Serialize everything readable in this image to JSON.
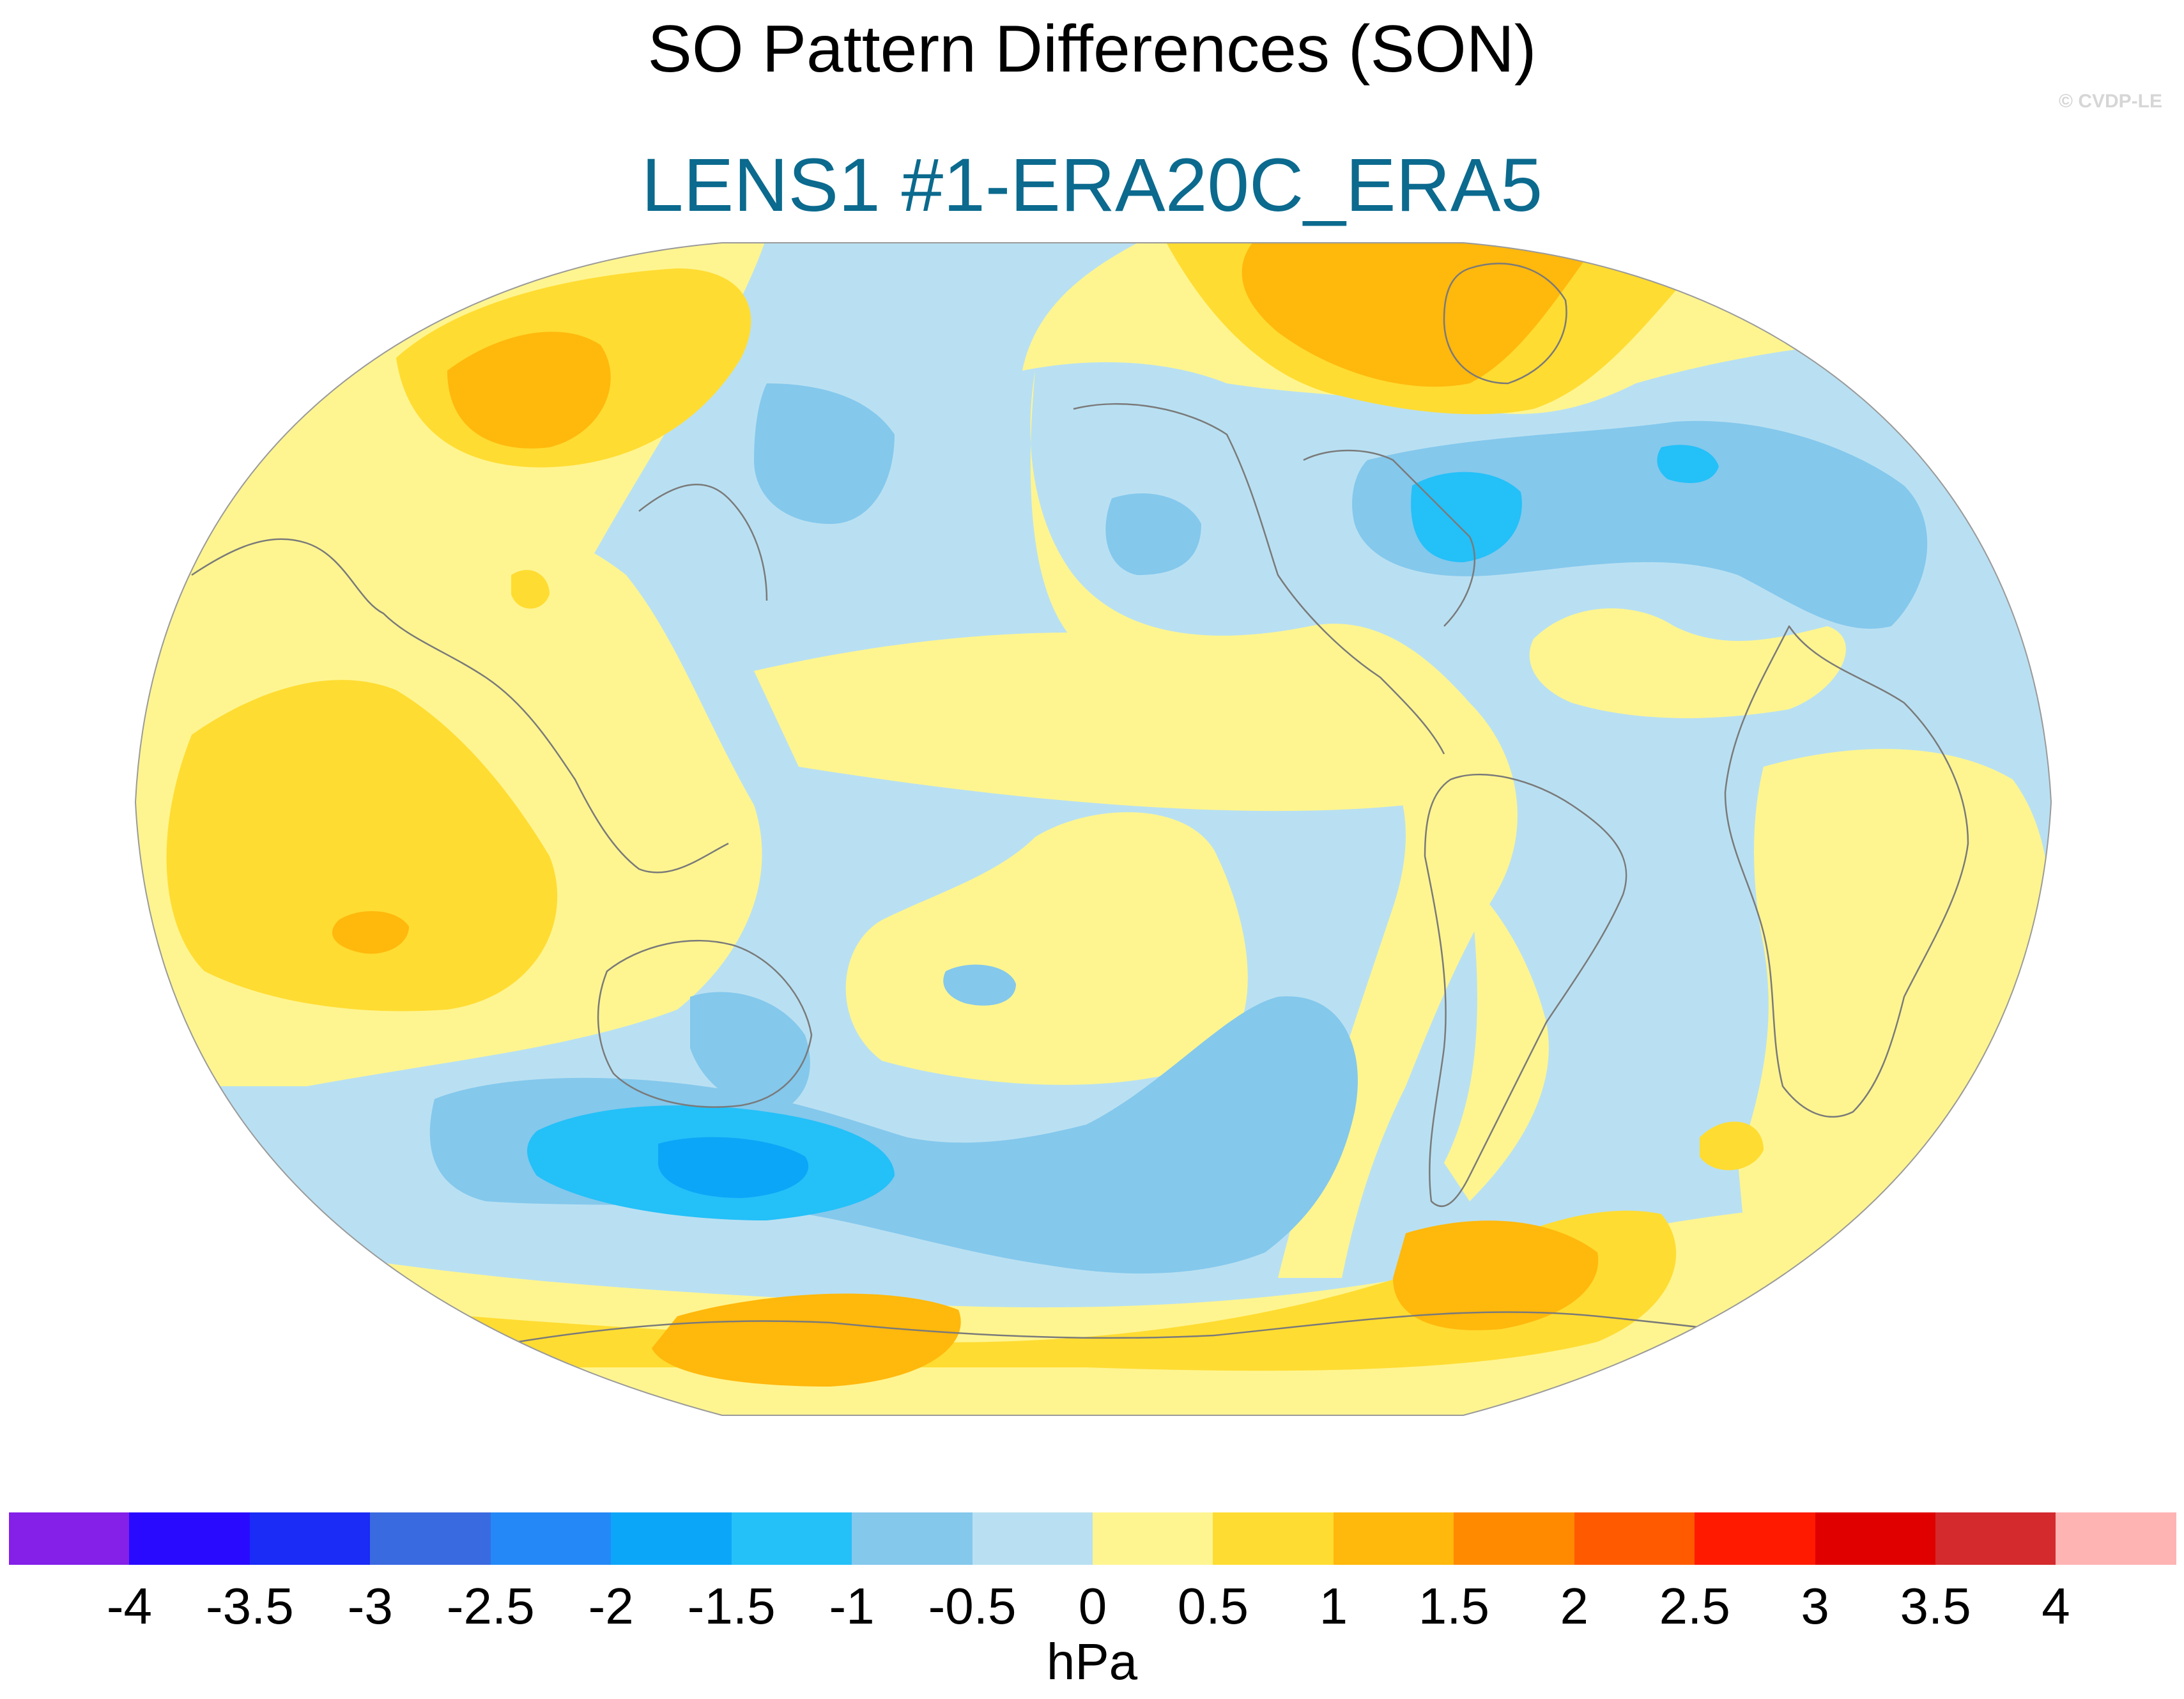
{
  "title": "SO Pattern Differences (SON)",
  "subtitle": "LENS1 #1-ERA20C_ERA5",
  "credit": "© CVDP-LE",
  "colors": {
    "subtitle": "#0b6a8e",
    "ocean_background": "#b9e0f2",
    "coastline": "#7a7a7a",
    "map_outline": "#9a9a9a"
  },
  "projection": "Robinson",
  "colorbar": {
    "unit": "hPa",
    "ticks": [
      "-4",
      "-3.5",
      "-3",
      "-2.5",
      "-2",
      "-1.5",
      "-1",
      "-0.5",
      "0",
      "0.5",
      "1",
      "1.5",
      "2",
      "2.5",
      "3",
      "3.5",
      "4"
    ],
    "colors": [
      "#8420e8",
      "#2a0aff",
      "#1a2cf5",
      "#3a6ae0",
      "#2489f6",
      "#0ca6f8",
      "#24c0f8",
      "#84c8ec",
      "#b9e0f2",
      "#fff590",
      "#ffdc32",
      "#ffb80c",
      "#ff8a00",
      "#ff5a00",
      "#ff1a00",
      "#e00000",
      "#d42a2e",
      "#ffb4b4"
    ]
  },
  "map_regions": [
    {
      "name": "pacific-basin-negative",
      "level": "-0.5 to 0",
      "color": "#b9e0f2"
    },
    {
      "name": "equatorial-positive-band",
      "level": "0 to 0.5",
      "color": "#fff590"
    },
    {
      "name": "indian-ocean-positive",
      "level": "0.5 to 1",
      "color": "#ffdc32"
    },
    {
      "name": "indian-ocean-core",
      "level": "1 to 1.5",
      "color": "#ffb80c"
    },
    {
      "name": "siberia-positive",
      "level": "1 to 1.5",
      "color": "#ffb80c"
    },
    {
      "name": "greenland-positive",
      "level": "1 to 1.5",
      "color": "#ffb80c"
    },
    {
      "name": "antarctic-positive",
      "level": "1 to 1.5",
      "color": "#ffb80c"
    },
    {
      "name": "south-pacific-negative",
      "level": "-1 to -0.5",
      "color": "#84c8ec"
    },
    {
      "name": "south-pacific-core",
      "level": "-2 to -1.5",
      "color": "#0ca6f8"
    },
    {
      "name": "north-atlantic-negative",
      "level": "-1 to -0.5",
      "color": "#84c8ec"
    },
    {
      "name": "north-atlantic-core",
      "level": "-1.5 to -1",
      "color": "#24c0f8"
    },
    {
      "name": "north-pacific-negative",
      "level": "-1 to -0.5",
      "color": "#84c8ec"
    }
  ]
}
